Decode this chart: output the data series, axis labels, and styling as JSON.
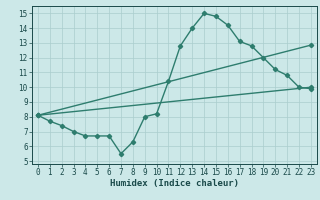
{
  "line1_x": [
    0,
    1,
    2,
    3,
    4,
    5,
    6,
    7,
    8,
    9,
    10,
    11,
    12,
    13,
    14,
    15,
    16,
    17,
    18,
    19,
    20,
    21,
    22,
    23
  ],
  "line1_y": [
    8.1,
    7.7,
    7.4,
    7.0,
    6.7,
    6.7,
    6.7,
    5.5,
    6.3,
    8.0,
    8.2,
    10.4,
    12.8,
    14.0,
    15.0,
    14.8,
    14.2,
    13.1,
    12.8,
    12.0,
    11.2,
    10.8,
    10.0,
    9.9
  ],
  "line2_x": [
    0,
    23
  ],
  "line2_y": [
    8.1,
    10.0
  ],
  "line3_x": [
    0,
    23
  ],
  "line3_y": [
    8.1,
    12.85
  ],
  "color": "#2e7d6e",
  "bg_color": "#cce8e8",
  "grid_color": "#aacece",
  "xlabel": "Humidex (Indice chaleur)",
  "xlim": [
    -0.5,
    23.5
  ],
  "ylim": [
    4.8,
    15.5
  ],
  "yticks": [
    5,
    6,
    7,
    8,
    9,
    10,
    11,
    12,
    13,
    14,
    15
  ],
  "xticks": [
    0,
    1,
    2,
    3,
    4,
    5,
    6,
    7,
    8,
    9,
    10,
    11,
    12,
    13,
    14,
    15,
    16,
    17,
    18,
    19,
    20,
    21,
    22,
    23
  ],
  "marker": "D",
  "markersize": 2.2,
  "linewidth": 1.0,
  "font_color": "#1a4a4a",
  "tick_fontsize": 5.5,
  "xlabel_fontsize": 6.5
}
